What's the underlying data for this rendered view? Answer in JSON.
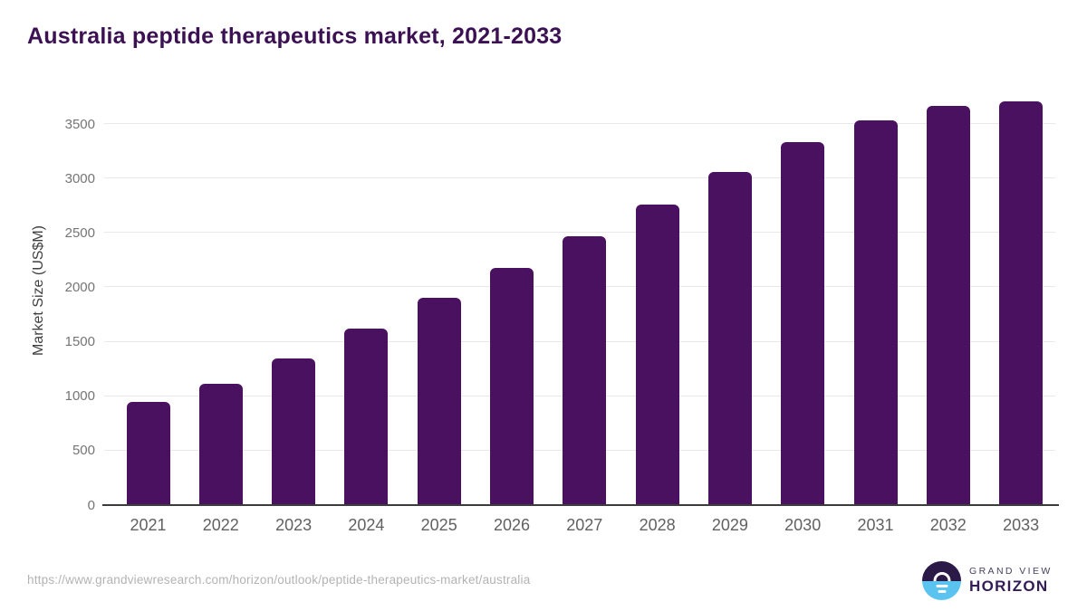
{
  "title": "Australia peptide therapeutics market, 2021-2033",
  "chart_data": {
    "type": "bar",
    "title": "Australia peptide therapeutics market, 2021-2033",
    "categories": [
      "2021",
      "2022",
      "2023",
      "2024",
      "2025",
      "2026",
      "2027",
      "2028",
      "2029",
      "2030",
      "2031",
      "2032",
      "2033"
    ],
    "values": [
      950,
      1110,
      1350,
      1620,
      1900,
      2180,
      2470,
      2760,
      3060,
      3330,
      3530,
      3670,
      3710
    ],
    "xlabel": "",
    "ylabel": "Market Size (US$M)",
    "ylim": [
      0,
      3800
    ],
    "yticks": [
      0,
      500,
      1000,
      1500,
      2000,
      2500,
      3000,
      3500
    ],
    "grid": true,
    "legend": false,
    "bar_color": "#4a1161"
  },
  "footer": {
    "source_url": "https://www.grandviewresearch.com/horizon/outlook/peptide-therapeutics-market/australia",
    "logo": {
      "line1": "GRAND VIEW",
      "line2": "HORIZON"
    }
  },
  "colors": {
    "bar": "#4a1161",
    "title_text": "#3b1153",
    "axis_line": "#3c3c3c",
    "gridline": "#e8e8e8",
    "y_tick_text": "#757575",
    "x_tick_text": "#616161",
    "url_text": "#b3b3b3",
    "logo_dark": "#2b1947",
    "logo_blue": "#5bc3ef"
  }
}
